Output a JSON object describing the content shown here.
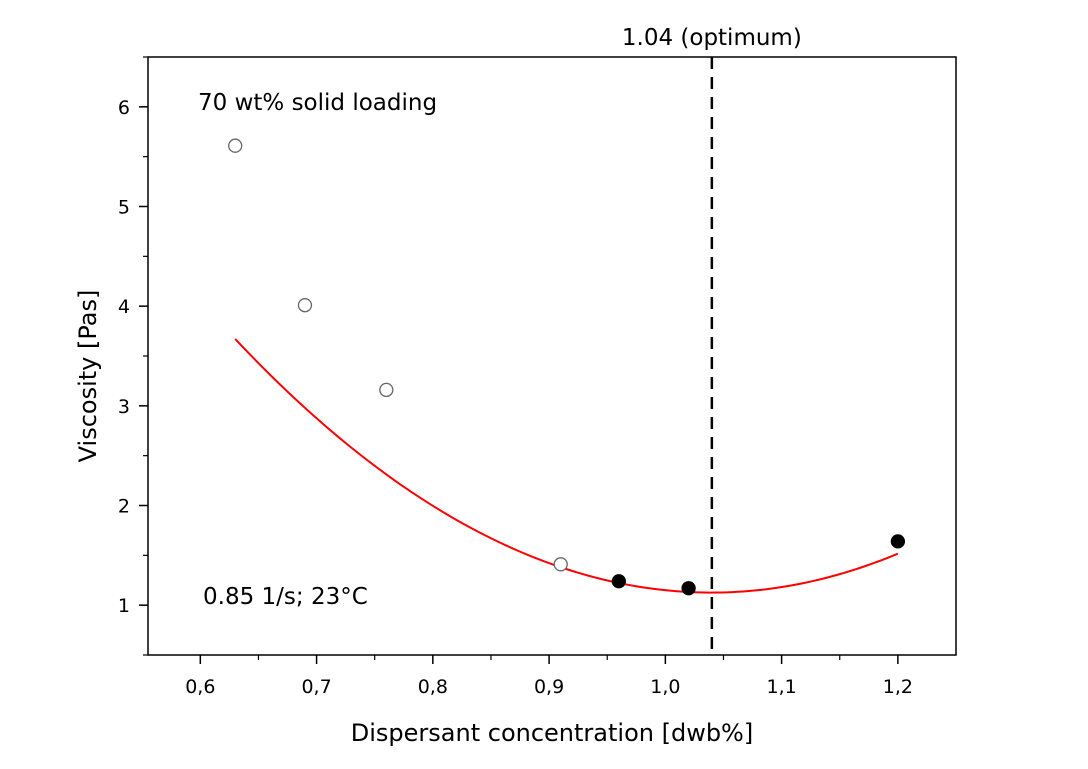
{
  "chart_data": {
    "type": "scatter",
    "title": "",
    "xlabel": "Dispersant concentration [dwb%]",
    "ylabel": "Viscosity [Pas]",
    "xlim": [
      0.555,
      1.25
    ],
    "ylim": [
      0.5,
      6.5
    ],
    "x_ticks": [
      "0,6",
      "0,7",
      "0,8",
      "0,9",
      "1,0",
      "1,1",
      "1,2"
    ],
    "y_ticks": [
      "1",
      "2",
      "3",
      "4",
      "5",
      "6"
    ],
    "series": [
      {
        "marker": "open-circle",
        "points": [
          {
            "x": 0.63,
            "y": 5.61
          },
          {
            "x": 0.69,
            "y": 4.01
          },
          {
            "x": 0.76,
            "y": 3.16
          },
          {
            "x": 0.91,
            "y": 1.41
          }
        ]
      },
      {
        "marker": "filled-circle",
        "points": [
          {
            "x": 0.96,
            "y": 1.24
          },
          {
            "x": 1.02,
            "y": 1.17
          },
          {
            "x": 1.2,
            "y": 1.64
          }
        ]
      }
    ],
    "fit_curve": {
      "color": "#ff0000",
      "x_range": [
        0.63,
        1.2
      ],
      "coefficients": {
        "a": 15.17,
        "b": -31.54,
        "c": 17.52
      }
    },
    "reference_line": {
      "x": 1.04,
      "label": "1.04 (optimum)",
      "style": "dashed"
    },
    "annotations": [
      "70 wt% solid loading",
      "0.85 1/s; 23°C"
    ],
    "grid": false,
    "legend": "none"
  }
}
